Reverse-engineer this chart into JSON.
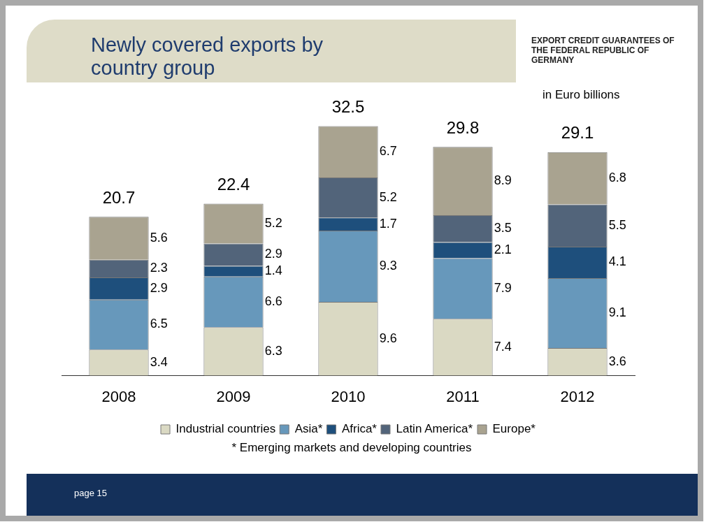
{
  "chart_data": {
    "type": "bar",
    "title": "Newly covered exports by country group",
    "subtitle": "EXPORT CREDIT GUARANTEES OF THE FEDERAL REPUBLIC OF GERMANY",
    "stacked": true,
    "data_labels": true,
    "legend": "bottom",
    "grid": false,
    "annotations": [
      "in Euro billions",
      "* Emerging markets and developing countries",
      "page 15"
    ],
    "categories": [
      "2008",
      "2009",
      "2010",
      "2011",
      "2012"
    ],
    "series": [
      {
        "name": "Industrial countries",
        "color": "#dad9c3",
        "values": [
          3.4,
          6.3,
          9.6,
          7.4,
          3.6
        ]
      },
      {
        "name": "Asia*",
        "color": "#6798bb",
        "values": [
          6.5,
          6.6,
          9.3,
          7.9,
          9.1
        ]
      },
      {
        "name": "Africa*",
        "color": "#1e4f7c",
        "values": [
          2.9,
          1.4,
          1.7,
          2.1,
          4.1
        ]
      },
      {
        "name": "Latin America*",
        "color": "#52647a",
        "values": [
          2.3,
          2.9,
          5.2,
          3.5,
          5.5
        ]
      },
      {
        "name": "Europe*",
        "color": "#a9a390",
        "values": [
          5.6,
          5.2,
          6.7,
          8.9,
          6.8
        ]
      }
    ],
    "totals": [
      "20.7",
      "22.4",
      "32.5",
      "29.8",
      "29.1"
    ]
  }
}
